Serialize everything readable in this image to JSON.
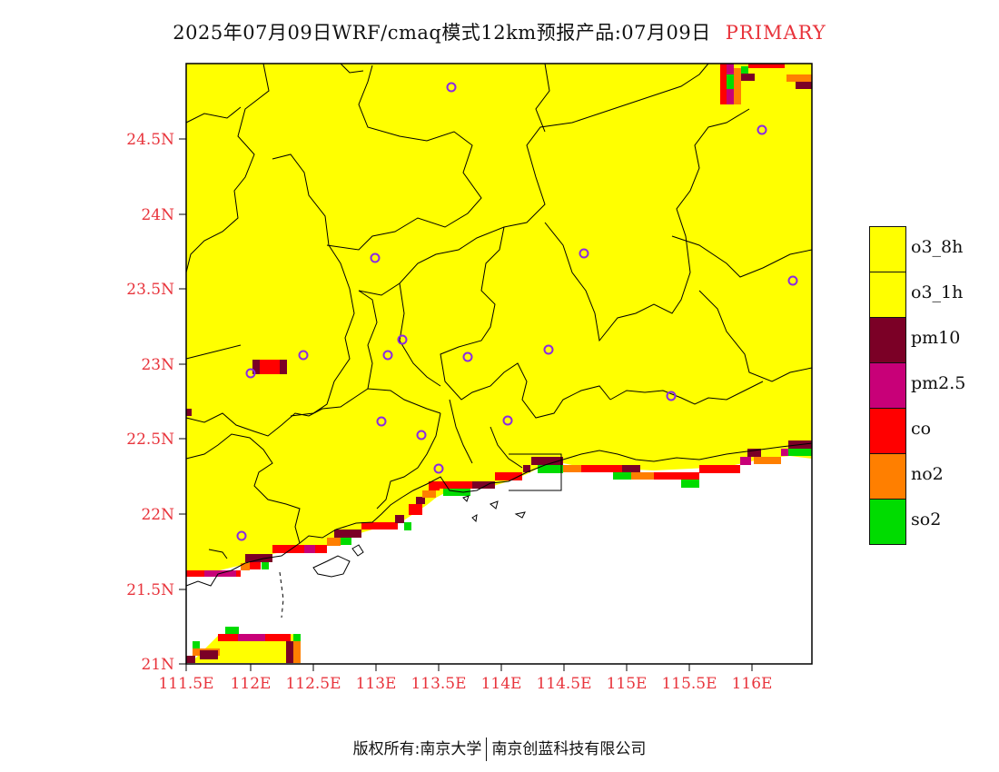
{
  "header": {
    "title": "2025年07月09日WRF/cmaq模式12km预报产品:07月09日",
    "tag": "PRIMARY"
  },
  "colors": {
    "land": "#ffff00",
    "border": "#000000",
    "tick_label": "#e8343c",
    "city_marker": "#8a2be2"
  },
  "axes": {
    "y_ticks": [
      "24.5N",
      "24N",
      "23.5N",
      "23N",
      "22.5N",
      "22N",
      "21.5N",
      "21N"
    ],
    "x_ticks": [
      "111.5E",
      "112E",
      "112.5E",
      "113E",
      "113.5E",
      "114E",
      "114.5E",
      "115E",
      "115.5E",
      "116E"
    ],
    "lon_range": [
      111.5,
      116.2
    ],
    "lat_range": [
      21.0,
      25.0
    ]
  },
  "legend": {
    "items": [
      {
        "label": "o3_8h",
        "color": "#ffff00"
      },
      {
        "label": "o3_1h",
        "color": "#ffff00"
      },
      {
        "label": "pm10",
        "color": "#7b0026"
      },
      {
        "label": "pm2.5",
        "color": "#c80078"
      },
      {
        "label": "co",
        "color": "#ff0000"
      },
      {
        "label": "no2",
        "color": "#ff7f00"
      },
      {
        "label": "so2",
        "color": "#00dc00"
      }
    ]
  },
  "footer": {
    "left": "版权所有:南京大学",
    "right": "南京创蓝科技有限公司"
  }
}
